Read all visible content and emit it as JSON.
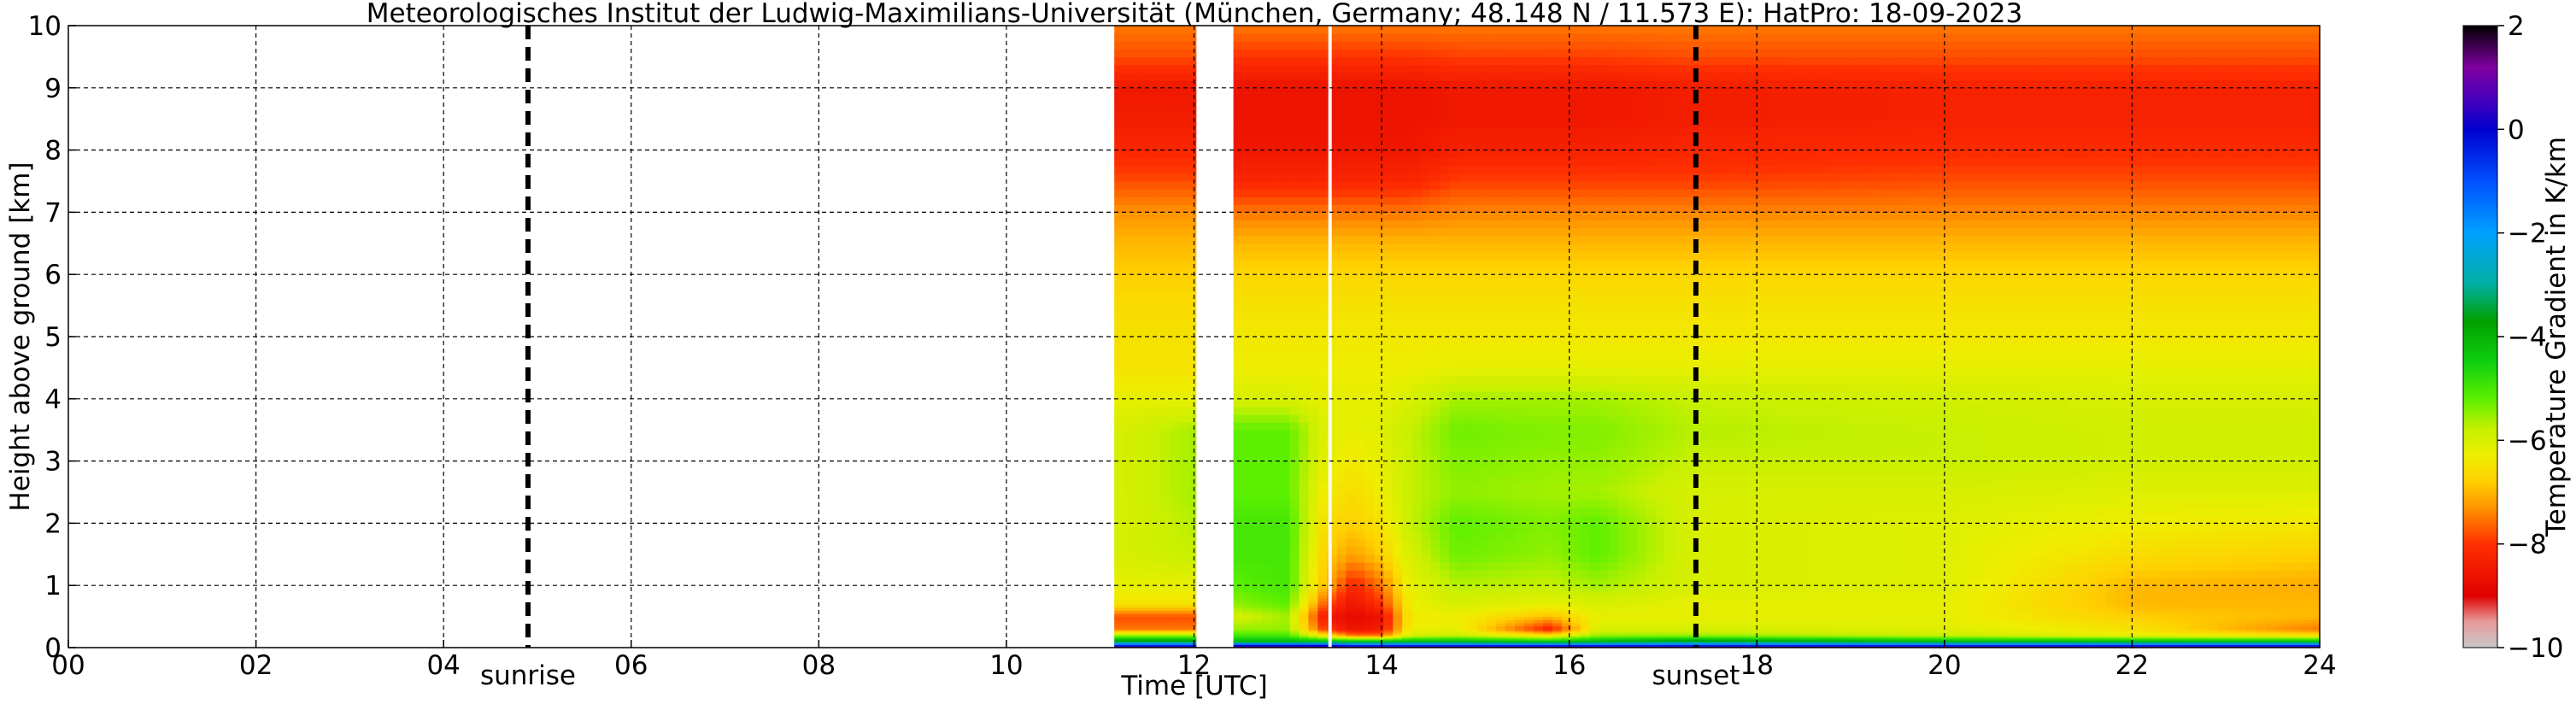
{
  "chart_data": {
    "type": "heatmap",
    "title": "Meteorologisches Institut der Ludwig-Maximilians-Universität (München, Germany; 48.148 N / 11.573 E):    HatPro: 18-09-2023",
    "xlabel": "Time [UTC]",
    "ylabel": "Height above ground [km]",
    "xlim": [
      0,
      24
    ],
    "ylim": [
      0,
      10
    ],
    "x_ticks": [
      "00",
      "02",
      "04",
      "06",
      "08",
      "10",
      "12",
      "14",
      "16",
      "18",
      "20",
      "22",
      "24"
    ],
    "y_ticks": [
      "0",
      "1",
      "2",
      "3",
      "4",
      "5",
      "6",
      "7",
      "8",
      "9",
      "10"
    ],
    "grid": true,
    "colorbar": {
      "label": "Temperature Gradient in K/km",
      "range": [
        -10,
        2
      ],
      "ticks": [
        "2",
        "0",
        "−2",
        "−4",
        "−6",
        "−8",
        "−10"
      ],
      "stops": [
        {
          "value": -10,
          "color": "#c8c8c8"
        },
        {
          "value": -9.5,
          "color": "#e89a9a"
        },
        {
          "value": -9,
          "color": "#e00000"
        },
        {
          "value": -8,
          "color": "#ff3000"
        },
        {
          "value": -7.3,
          "color": "#ff9400"
        },
        {
          "value": -6.8,
          "color": "#ffd000"
        },
        {
          "value": -6.3,
          "color": "#eeee00"
        },
        {
          "value": -5.8,
          "color": "#c8f000"
        },
        {
          "value": -5.2,
          "color": "#5cf000"
        },
        {
          "value": -4.5,
          "color": "#10d010"
        },
        {
          "value": -3.7,
          "color": "#00a000"
        },
        {
          "value": -3,
          "color": "#00b0a0"
        },
        {
          "value": -2,
          "color": "#00a0ff"
        },
        {
          "value": -1,
          "color": "#0050ff"
        },
        {
          "value": 0,
          "color": "#0000d0"
        },
        {
          "value": 0.5,
          "color": "#4000c0"
        },
        {
          "value": 1.2,
          "color": "#8000a0"
        },
        {
          "value": 2,
          "color": "#000000"
        }
      ]
    },
    "vlines": [
      {
        "x": 4.9,
        "label": "sunrise",
        "style": "dashed-bold"
      },
      {
        "x": 17.35,
        "label": "sunset",
        "style": "dashed-bold"
      }
    ],
    "data_segments": [
      {
        "start": 11.15,
        "end": 12.02
      },
      {
        "start": 12.42,
        "end": 24.0
      }
    ],
    "gap_lines": [
      13.45
    ],
    "profile_heights_km": [
      0,
      0.05,
      0.1,
      0.2,
      0.3,
      0.5,
      0.7,
      1,
      1.5,
      2,
      2.5,
      3,
      3.5,
      4,
      4.5,
      5,
      5.5,
      6,
      6.5,
      7,
      7.5,
      8,
      8.5,
      9,
      9.5,
      10
    ],
    "profiles": [
      {
        "t": 11.2,
        "values": [
          1.5,
          -1,
          -3.5,
          -5.5,
          -7.5,
          -7.8,
          -6.5,
          -6.2,
          -6.0,
          -6.0,
          -6.0,
          -6.0,
          -6.0,
          -6.2,
          -6.5,
          -6.5,
          -6.6,
          -6.8,
          -7.0,
          -7.3,
          -7.8,
          -8.2,
          -8.4,
          -8.5,
          -7.8,
          -7.5
        ]
      },
      {
        "t": 12.0,
        "values": [
          1.5,
          -1,
          -3.5,
          -5.5,
          -7.5,
          -7.8,
          -6.5,
          -6.2,
          -5.8,
          -5.7,
          -5.6,
          -5.6,
          -5.6,
          -6.2,
          -6.5,
          -6.5,
          -6.6,
          -6.8,
          -7.0,
          -7.3,
          -7.8,
          -8.2,
          -8.4,
          -8.5,
          -7.8,
          -7.5
        ]
      },
      {
        "t": 12.42,
        "values": [
          1.5,
          -0.5,
          -4.0,
          -5.0,
          -5.5,
          -6.0,
          -5.5,
          -5.2,
          -5.0,
          -5.0,
          -5.2,
          -5.2,
          -5.2,
          -6.0,
          -6.3,
          -6.4,
          -6.5,
          -6.7,
          -7.0,
          -7.5,
          -8.2,
          -8.5,
          -8.6,
          -8.6,
          -8.0,
          -7.5
        ]
      },
      {
        "t": 13.0,
        "values": [
          1.5,
          -0.5,
          -4.0,
          -5.0,
          -5.5,
          -5.6,
          -5.2,
          -5.0,
          -5.0,
          -5.0,
          -5.2,
          -5.2,
          -5.2,
          -6.0,
          -6.3,
          -6.4,
          -6.5,
          -6.7,
          -7.0,
          -7.5,
          -8.2,
          -8.5,
          -8.6,
          -8.6,
          -8.0,
          -7.5
        ]
      },
      {
        "t": 13.4,
        "values": [
          1.5,
          -0.5,
          -4.0,
          -6.5,
          -8.0,
          -8.5,
          -7.8,
          -7.0,
          -6.8,
          -6.6,
          -6.4,
          -6.2,
          -6.1,
          -6.2,
          -6.3,
          -6.4,
          -6.5,
          -6.7,
          -7.0,
          -7.5,
          -8.2,
          -8.5,
          -8.6,
          -8.6,
          -8.0,
          -7.5
        ]
      },
      {
        "t": 13.7,
        "values": [
          1.5,
          -1,
          -4.0,
          -7.5,
          -8.6,
          -8.8,
          -8.6,
          -8.2,
          -7.2,
          -6.8,
          -6.6,
          -6.4,
          -6.2,
          -6.2,
          -6.3,
          -6.4,
          -6.5,
          -6.7,
          -7.0,
          -7.5,
          -8.2,
          -8.5,
          -8.6,
          -8.6,
          -8.0,
          -7.5
        ]
      },
      {
        "t": 14.0,
        "values": [
          1.5,
          -1,
          -4.0,
          -7.5,
          -8.4,
          -8.6,
          -8.0,
          -7.5,
          -6.8,
          -6.5,
          -6.3,
          -6.2,
          -6.1,
          -6.2,
          -6.3,
          -6.4,
          -6.5,
          -6.7,
          -7.0,
          -7.5,
          -8.2,
          -8.5,
          -8.6,
          -8.6,
          -8.0,
          -7.5
        ]
      },
      {
        "t": 14.3,
        "values": [
          1.5,
          -1,
          -4.0,
          -6.0,
          -6.3,
          -6.4,
          -6.3,
          -6.2,
          -6.0,
          -5.8,
          -5.8,
          -5.8,
          -5.8,
          -6.0,
          -6.3,
          -6.4,
          -6.5,
          -6.7,
          -7.0,
          -7.5,
          -8.2,
          -8.5,
          -8.6,
          -8.6,
          -8.0,
          -7.5
        ]
      },
      {
        "t": 14.8,
        "values": [
          1.5,
          -1,
          -4.0,
          -5.8,
          -6.2,
          -6.3,
          -6.0,
          -5.7,
          -5.3,
          -5.2,
          -5.5,
          -5.4,
          -5.3,
          -5.6,
          -6.2,
          -6.4,
          -6.5,
          -6.7,
          -7.0,
          -7.4,
          -7.9,
          -8.3,
          -8.5,
          -8.5,
          -7.9,
          -7.5
        ]
      },
      {
        "t": 15.8,
        "values": [
          1.5,
          -1,
          -4.2,
          -6.5,
          -8.3,
          -7.0,
          -6.2,
          -5.8,
          -5.5,
          -5.4,
          -5.6,
          -5.5,
          -5.4,
          -5.6,
          -6.2,
          -6.4,
          -6.5,
          -6.7,
          -7.0,
          -7.4,
          -7.9,
          -8.3,
          -8.5,
          -8.5,
          -7.9,
          -7.5
        ]
      },
      {
        "t": 16.3,
        "values": [
          1.5,
          -1,
          -4.0,
          -5.5,
          -6.0,
          -6.2,
          -6.0,
          -5.6,
          -5.2,
          -5.2,
          -5.6,
          -5.5,
          -5.4,
          -5.6,
          -6.2,
          -6.4,
          -6.5,
          -6.7,
          -7.0,
          -7.4,
          -7.9,
          -8.3,
          -8.5,
          -8.5,
          -7.9,
          -7.5
        ]
      },
      {
        "t": 17.3,
        "values": [
          1.5,
          -1,
          -3.5,
          -5.5,
          -6.0,
          -6.2,
          -6.2,
          -6.0,
          -6.0,
          -6.0,
          -6.0,
          -5.8,
          -5.7,
          -5.8,
          -6.2,
          -6.4,
          -6.5,
          -6.7,
          -7.0,
          -7.4,
          -7.9,
          -8.2,
          -8.4,
          -8.4,
          -7.8,
          -7.5
        ]
      },
      {
        "t": 20.0,
        "values": [
          1.5,
          -1,
          -4.0,
          -5.8,
          -6.1,
          -6.2,
          -6.2,
          -6.1,
          -6.1,
          -6.1,
          -6.0,
          -5.8,
          -5.8,
          -5.9,
          -6.2,
          -6.4,
          -6.5,
          -6.7,
          -7.0,
          -7.4,
          -7.8,
          -8.1,
          -8.3,
          -8.3,
          -7.8,
          -7.5
        ]
      },
      {
        "t": 22.0,
        "values": [
          1.5,
          -1,
          -4.0,
          -6.2,
          -6.5,
          -6.8,
          -7.0,
          -7.0,
          -6.6,
          -6.3,
          -6.1,
          -5.9,
          -5.9,
          -6.0,
          -6.2,
          -6.4,
          -6.5,
          -6.7,
          -7.0,
          -7.4,
          -7.8,
          -8.1,
          -8.3,
          -8.3,
          -7.8,
          -7.5
        ]
      },
      {
        "t": 24.0,
        "values": [
          1.5,
          -1,
          -4.0,
          -6.5,
          -7.5,
          -7.0,
          -7.0,
          -7.1,
          -6.8,
          -6.4,
          -6.1,
          -5.9,
          -5.9,
          -6.0,
          -6.2,
          -6.4,
          -6.5,
          -6.7,
          -7.0,
          -7.4,
          -7.8,
          -8.1,
          -8.3,
          -8.3,
          -7.8,
          -7.5
        ]
      }
    ]
  }
}
